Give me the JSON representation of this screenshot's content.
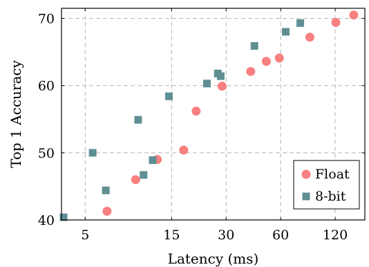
{
  "chart_data": {
    "type": "scatter",
    "xlabel": "Latency (ms)",
    "ylabel": "Top 1 Accuracy",
    "xscale": "log",
    "xlim": [
      3.7,
      175
    ],
    "ylim": [
      40,
      71.5
    ],
    "xticks": [
      5,
      15,
      30,
      60,
      120
    ],
    "yticks": [
      40,
      50,
      60,
      70
    ],
    "grid": true,
    "legend_position": "bottom-right",
    "series": [
      {
        "name": "Float",
        "marker": "circle",
        "color": "#f88080",
        "points": [
          {
            "x": 6.6,
            "y": 41.3
          },
          {
            "x": 9.5,
            "y": 46.0
          },
          {
            "x": 12.5,
            "y": 49.0
          },
          {
            "x": 17.5,
            "y": 50.4
          },
          {
            "x": 20.5,
            "y": 56.2
          },
          {
            "x": 28.5,
            "y": 59.9
          },
          {
            "x": 41,
            "y": 62.1
          },
          {
            "x": 50,
            "y": 63.6
          },
          {
            "x": 59,
            "y": 64.1
          },
          {
            "x": 87,
            "y": 67.2
          },
          {
            "x": 121,
            "y": 69.4
          },
          {
            "x": 152,
            "y": 70.5
          }
        ]
      },
      {
        "name": "8-bit",
        "marker": "square",
        "color": "#5f8f93",
        "points": [
          {
            "x": 3.8,
            "y": 40.4
          },
          {
            "x": 5.5,
            "y": 50.0
          },
          {
            "x": 6.5,
            "y": 44.4
          },
          {
            "x": 9.8,
            "y": 54.9
          },
          {
            "x": 10.5,
            "y": 46.7
          },
          {
            "x": 11.8,
            "y": 48.9
          },
          {
            "x": 14.5,
            "y": 58.4
          },
          {
            "x": 23.5,
            "y": 60.3
          },
          {
            "x": 27,
            "y": 61.8
          },
          {
            "x": 28,
            "y": 61.4
          },
          {
            "x": 43,
            "y": 65.9
          },
          {
            "x": 64,
            "y": 68.0
          },
          {
            "x": 77,
            "y": 69.3
          }
        ]
      }
    ]
  }
}
